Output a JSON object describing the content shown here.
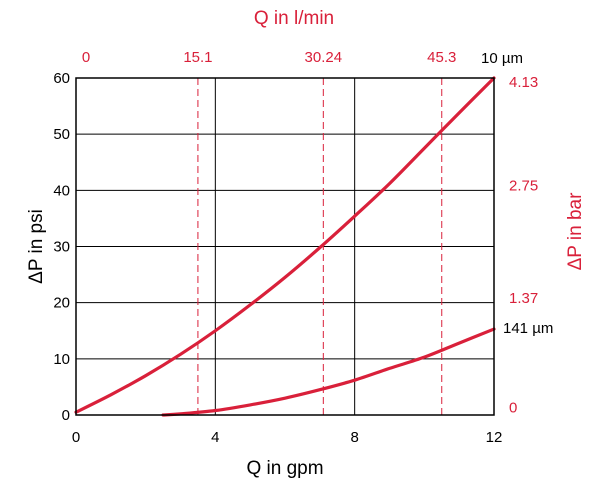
{
  "colors": {
    "accent": "#d9203a",
    "axis": "#000000",
    "background": "#ffffff"
  },
  "chart_data": {
    "type": "line",
    "title": "",
    "grid": true,
    "x_axis": {
      "label": "Q in gpm",
      "min": 0,
      "max": 12,
      "ticks": [
        0,
        4,
        8,
        12
      ]
    },
    "y_axis": {
      "label": "ΔP in psi",
      "min": 0,
      "max": 60,
      "ticks": [
        0,
        10,
        20,
        30,
        40,
        50,
        60
      ]
    },
    "x2_axis": {
      "label": "Q in l/min",
      "position": "top",
      "ticks": [
        {
          "label": "0",
          "gpm": 0
        },
        {
          "label": "15.1",
          "gpm": 3.5
        },
        {
          "label": "30.24",
          "gpm": 7.1
        },
        {
          "label": "45.3",
          "gpm": 10.5
        }
      ]
    },
    "y2_axis": {
      "label": "ΔP in bar",
      "position": "right",
      "ticks": [
        {
          "label": "0",
          "psi": 1.5
        },
        {
          "label": "1.37",
          "psi": 21
        },
        {
          "label": "2.75",
          "psi": 41
        },
        {
          "label": "4.13",
          "psi": 59.5
        }
      ]
    },
    "series": [
      {
        "name": "10 µm",
        "x": [
          0,
          1,
          2,
          3,
          4,
          5,
          6,
          7,
          8,
          9,
          10,
          11,
          12
        ],
        "y": [
          0.5,
          3.6,
          7,
          10.8,
          15,
          19.6,
          24.5,
          29.8,
          35.4,
          41.2,
          47.5,
          53.8,
          60
        ]
      },
      {
        "name": "141 µm",
        "x": [
          2.5,
          3,
          4,
          5,
          6,
          7,
          8,
          9,
          10,
          11,
          12
        ],
        "y": [
          0,
          0.2,
          0.8,
          1.8,
          3.0,
          4.5,
          6.2,
          8.3,
          10.3,
          12.8,
          15.3
        ]
      }
    ],
    "top_right_label": "10 µm",
    "series_label_right": "141 µm"
  }
}
